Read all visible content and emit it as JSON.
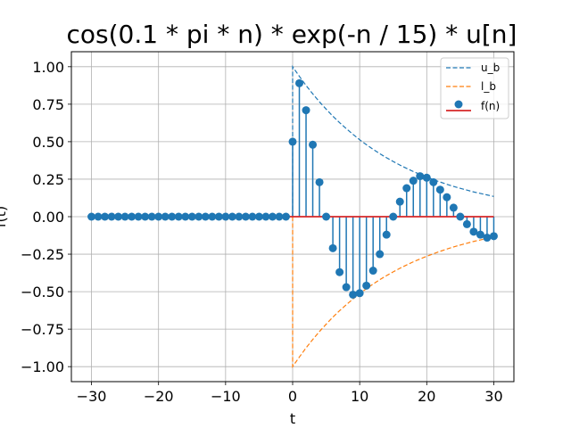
{
  "chart_data": {
    "type": "stem",
    "title": "cos(0.1 * pi * n) * exp(-n / 15) * u[n]",
    "xlabel": "t",
    "ylabel": "f(t)",
    "xlim": [
      -33,
      33
    ],
    "ylim": [
      -1.1,
      1.1
    ],
    "xticks": [
      -30,
      -20,
      -10,
      0,
      10,
      20,
      30
    ],
    "xtick_labels": [
      "−30",
      "−20",
      "−10",
      "0",
      "10",
      "20",
      "30"
    ],
    "yticks": [
      -1.0,
      -0.75,
      -0.5,
      -0.25,
      0.0,
      0.25,
      0.5,
      0.75,
      1.0
    ],
    "ytick_labels": [
      "−1.00",
      "−0.75",
      "−0.50",
      "−0.25",
      "0.00",
      "0.25",
      "0.50",
      "0.75",
      "1.00"
    ],
    "grid": true,
    "legend_position": "top-right",
    "colors": {
      "stem": "#1f77b4",
      "baseline": "#d62728",
      "upper": "#1f77b4",
      "lower": "#ff7f0e"
    },
    "series": [
      {
        "name": "u_b",
        "kind": "dashed-line",
        "x": [
          0,
          1,
          2,
          3,
          4,
          5,
          6,
          7,
          8,
          9,
          10,
          11,
          12,
          13,
          14,
          15,
          16,
          17,
          18,
          19,
          20,
          21,
          22,
          23,
          24,
          25,
          26,
          27,
          28,
          29,
          30
        ],
        "y": [
          1.0,
          0.936,
          0.875,
          0.819,
          0.766,
          0.717,
          0.67,
          0.627,
          0.587,
          0.549,
          0.513,
          0.48,
          0.449,
          0.42,
          0.393,
          0.368,
          0.344,
          0.322,
          0.301,
          0.282,
          0.264,
          0.247,
          0.231,
          0.216,
          0.202,
          0.189,
          0.177,
          0.165,
          0.155,
          0.145,
          0.135
        ]
      },
      {
        "name": "l_b",
        "kind": "dashed-line",
        "x": [
          0,
          1,
          2,
          3,
          4,
          5,
          6,
          7,
          8,
          9,
          10,
          11,
          12,
          13,
          14,
          15,
          16,
          17,
          18,
          19,
          20,
          21,
          22,
          23,
          24,
          25,
          26,
          27,
          28,
          29,
          30
        ],
        "y": [
          -1.0,
          -0.936,
          -0.875,
          -0.819,
          -0.766,
          -0.717,
          -0.67,
          -0.627,
          -0.587,
          -0.549,
          -0.513,
          -0.48,
          -0.449,
          -0.42,
          -0.393,
          -0.368,
          -0.344,
          -0.322,
          -0.301,
          -0.282,
          -0.264,
          -0.247,
          -0.231,
          -0.216,
          -0.202,
          -0.189,
          -0.177,
          -0.165,
          -0.155,
          -0.145,
          -0.135
        ]
      },
      {
        "name": "f(n)",
        "kind": "stem",
        "x": [
          -30,
          -29,
          -28,
          -27,
          -26,
          -25,
          -24,
          -23,
          -22,
          -21,
          -20,
          -19,
          -18,
          -17,
          -16,
          -15,
          -14,
          -13,
          -12,
          -11,
          -10,
          -9,
          -8,
          -7,
          -6,
          -5,
          -4,
          -3,
          -2,
          -1,
          0,
          1,
          2,
          3,
          4,
          5,
          6,
          7,
          8,
          9,
          10,
          11,
          12,
          13,
          14,
          15,
          16,
          17,
          18,
          19,
          20,
          21,
          22,
          23,
          24,
          25,
          26,
          27,
          28,
          29,
          30
        ],
        "y": [
          0,
          0,
          0,
          0,
          0,
          0,
          0,
          0,
          0,
          0,
          0,
          0,
          0,
          0,
          0,
          0,
          0,
          0,
          0,
          0,
          0,
          0,
          0,
          0,
          0,
          0,
          0,
          0,
          0,
          0,
          0.5,
          0.89,
          0.71,
          0.48,
          0.23,
          0.0,
          -0.21,
          -0.37,
          -0.47,
          -0.52,
          -0.51,
          -0.46,
          -0.36,
          -0.25,
          -0.12,
          0.0,
          0.1,
          0.19,
          0.24,
          0.27,
          0.26,
          0.23,
          0.18,
          0.13,
          0.06,
          0.0,
          -0.05,
          -0.1,
          -0.12,
          -0.14,
          -0.13
        ]
      }
    ]
  }
}
